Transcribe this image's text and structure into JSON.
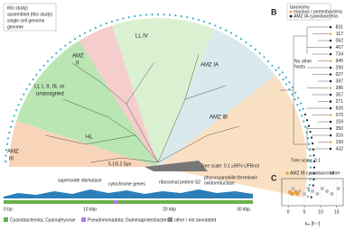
{
  "panel_a": {
    "legend_box": [
      "this study)",
      "assembled (this study)",
      "single cell genome",
      "genome"
    ],
    "clades": {
      "ll4": "LL IV",
      "amz1a": "AMZ IA",
      "amz1b": "AMZ IB",
      "amz2": [
        "AMZ",
        "II"
      ],
      "amz3": [
        "AMZ",
        "III"
      ],
      "ll123": [
        "LL I, II, III, or",
        "unassigned"
      ],
      "hl": "HL",
      "syn": "5.1/5.2 Syn"
    },
    "tree_scale": "Tree scale: 0.1",
    "ufboot": "≥95% UFBoot",
    "genes": [
      "superoxide dismutase",
      "cytochrome genes",
      "ribosomal protein S2",
      "phycocyanobilin:ferredoxin",
      "oxidoreductase"
    ],
    "track_ticks": [
      "0 bp",
      "10 kbp",
      "20 kbp",
      "30 kbp"
    ],
    "legend": [
      "Cyanobacteriota; Cyanophyceae",
      "Pseudomonadota; Gammaproteobacteria",
      "other / not annotated"
    ]
  },
  "panel_b": {
    "label": "B",
    "legend_title": "taxonomy",
    "legend": [
      "marinus / proteobacteria",
      "AMZ IA cyanobacteria"
    ],
    "no_hosts": [
      "No other",
      "hosts"
    ],
    "leaves": [
      "831",
      "117",
      "062",
      "467",
      "734",
      "945",
      "290",
      "027",
      "397",
      "286",
      "357",
      "271",
      "926",
      "375",
      "159",
      "350",
      "316",
      "199",
      "432"
    ],
    "tree_scale": "Tree scale: 0.1"
  },
  "panel_c": {
    "label": "C",
    "legend": [
      "AMZ IB cyanobacteria",
      "other"
    ],
    "xlim": [
      -2,
      17
    ],
    "xticks": [
      0,
      5,
      10,
      15
    ],
    "xlabel": "kₘ [h⁻¹]",
    "points_ib": [
      0.5,
      1.2,
      2.3,
      2.8
    ],
    "points_other": [
      1.5,
      3.5,
      5,
      6.2,
      7.5,
      9,
      10.5,
      12,
      13.5,
      15.5
    ]
  }
}
